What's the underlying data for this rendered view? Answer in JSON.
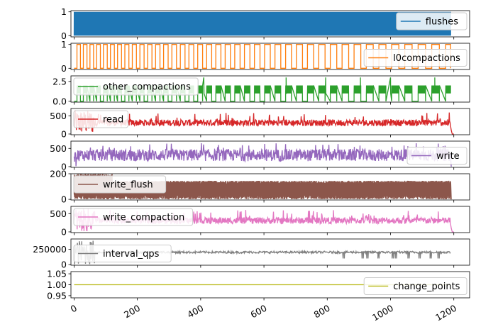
{
  "chart_data": {
    "type": "line",
    "layout": "stacked-subplots-shared-x",
    "x_ticks": [
      "0",
      "200",
      "400",
      "600",
      "800",
      "1000",
      "1200"
    ],
    "x_tick_values": [
      0,
      200,
      400,
      600,
      800,
      1000,
      1200
    ],
    "xlim": [
      -10,
      1250
    ],
    "x_tick_rotation": "30deg",
    "grid": false,
    "subplots": [
      {
        "series": "flushes",
        "color": "#1f77b4",
        "ylim": [
          -0.05,
          1.05
        ],
        "y_ticks": [
          "0",
          "1"
        ],
        "y_tick_values": [
          0,
          1
        ],
        "legend": "upper-right",
        "pattern": "binary toggling 0↔1 at very high frequency",
        "active_range": [
          0,
          1190
        ]
      },
      {
        "series": "l0compactions",
        "color": "#ff7f0e",
        "ylim": [
          -0.05,
          1.05
        ],
        "y_ticks": [
          "0",
          "1"
        ],
        "y_tick_values": [
          0,
          1
        ],
        "legend": "right",
        "pattern": "square wave 0↔1; period grows from ~20 to ~45",
        "active_range": [
          0,
          1190
        ]
      },
      {
        "series": "other_compactions",
        "color": "#2ca02c",
        "ylim": [
          -0.1,
          3.2
        ],
        "y_ticks": [
          "0.0",
          "2.5"
        ],
        "y_tick_values": [
          0,
          2.5
        ],
        "legend": "upper-left",
        "pattern": "bursts oscillating 1–2 with occasional spikes to 3",
        "active_range": [
          0,
          1190
        ],
        "spikes": [
          [
            410,
            3
          ],
          [
            670,
            3
          ],
          [
            795,
            3
          ],
          [
            905,
            3
          ],
          [
            1000,
            3
          ],
          [
            1140,
            3
          ]
        ]
      },
      {
        "series": "read",
        "color": "#d62728",
        "ylim": [
          -20,
          700
        ],
        "y_ticks": [
          "0",
          "500"
        ],
        "y_tick_values": [
          0,
          500
        ],
        "legend": "upper-left",
        "pattern": "noisy, mostly 200–400; early band 0–700 from x≈0–65; drops to 0 at ≈1190",
        "typical_range": [
          200,
          400
        ],
        "end_value": 0
      },
      {
        "series": "write",
        "color": "#9467bd",
        "ylim": [
          -20,
          700
        ],
        "y_ticks": [
          "0",
          "500"
        ],
        "y_tick_values": [
          0,
          500
        ],
        "legend": "right",
        "pattern": "noisy, mostly 150–500; peaks ≈650",
        "typical_range": [
          150,
          500
        ],
        "peak": 650
      },
      {
        "series": "write_flush",
        "color": "#8c564b",
        "ylim": [
          -5,
          200
        ],
        "y_ticks": [
          "0",
          "200"
        ],
        "y_tick_values": [
          0,
          200
        ],
        "legend": "upper-left",
        "pattern": "dense band 0–140 with early peaks to ~200",
        "typical_range": [
          0,
          140
        ],
        "peak": 200
      },
      {
        "series": "write_compaction",
        "color": "#e377c2",
        "ylim": [
          -20,
          700
        ],
        "y_ticks": [
          "0",
          "500"
        ],
        "y_tick_values": [
          0,
          500
        ],
        "legend": "upper-left",
        "pattern": "noisy, mostly 200–400; spikes to ~600; drops to 0 at ≈1190",
        "typical_range": [
          200,
          400
        ],
        "end_value": 0
      },
      {
        "series": "interval_qps",
        "color": "#7f7f7f",
        "ylim": [
          -10000,
          420000
        ],
        "y_ticks": [
          "0",
          "250000"
        ],
        "y_tick_values": [
          0,
          250000
        ],
        "legend": "left",
        "pattern": "steady ≈200000 with dips to ≈100000 (x≈840–1150); early band 0–400000",
        "typical_value": 200000,
        "dips": [
          850,
          910,
          925,
          960,
          1005,
          1015,
          1055,
          1090,
          1125,
          1150
        ]
      },
      {
        "series": "change_points",
        "color": "#bcbd22",
        "ylim": [
          0.94,
          1.06
        ],
        "y_ticks": [
          "0.95",
          "1.00",
          "1.05"
        ],
        "y_tick_values": [
          0.95,
          1.0,
          1.05
        ],
        "legend": "right",
        "pattern": "constant 1.00",
        "value": 1.0
      }
    ]
  }
}
